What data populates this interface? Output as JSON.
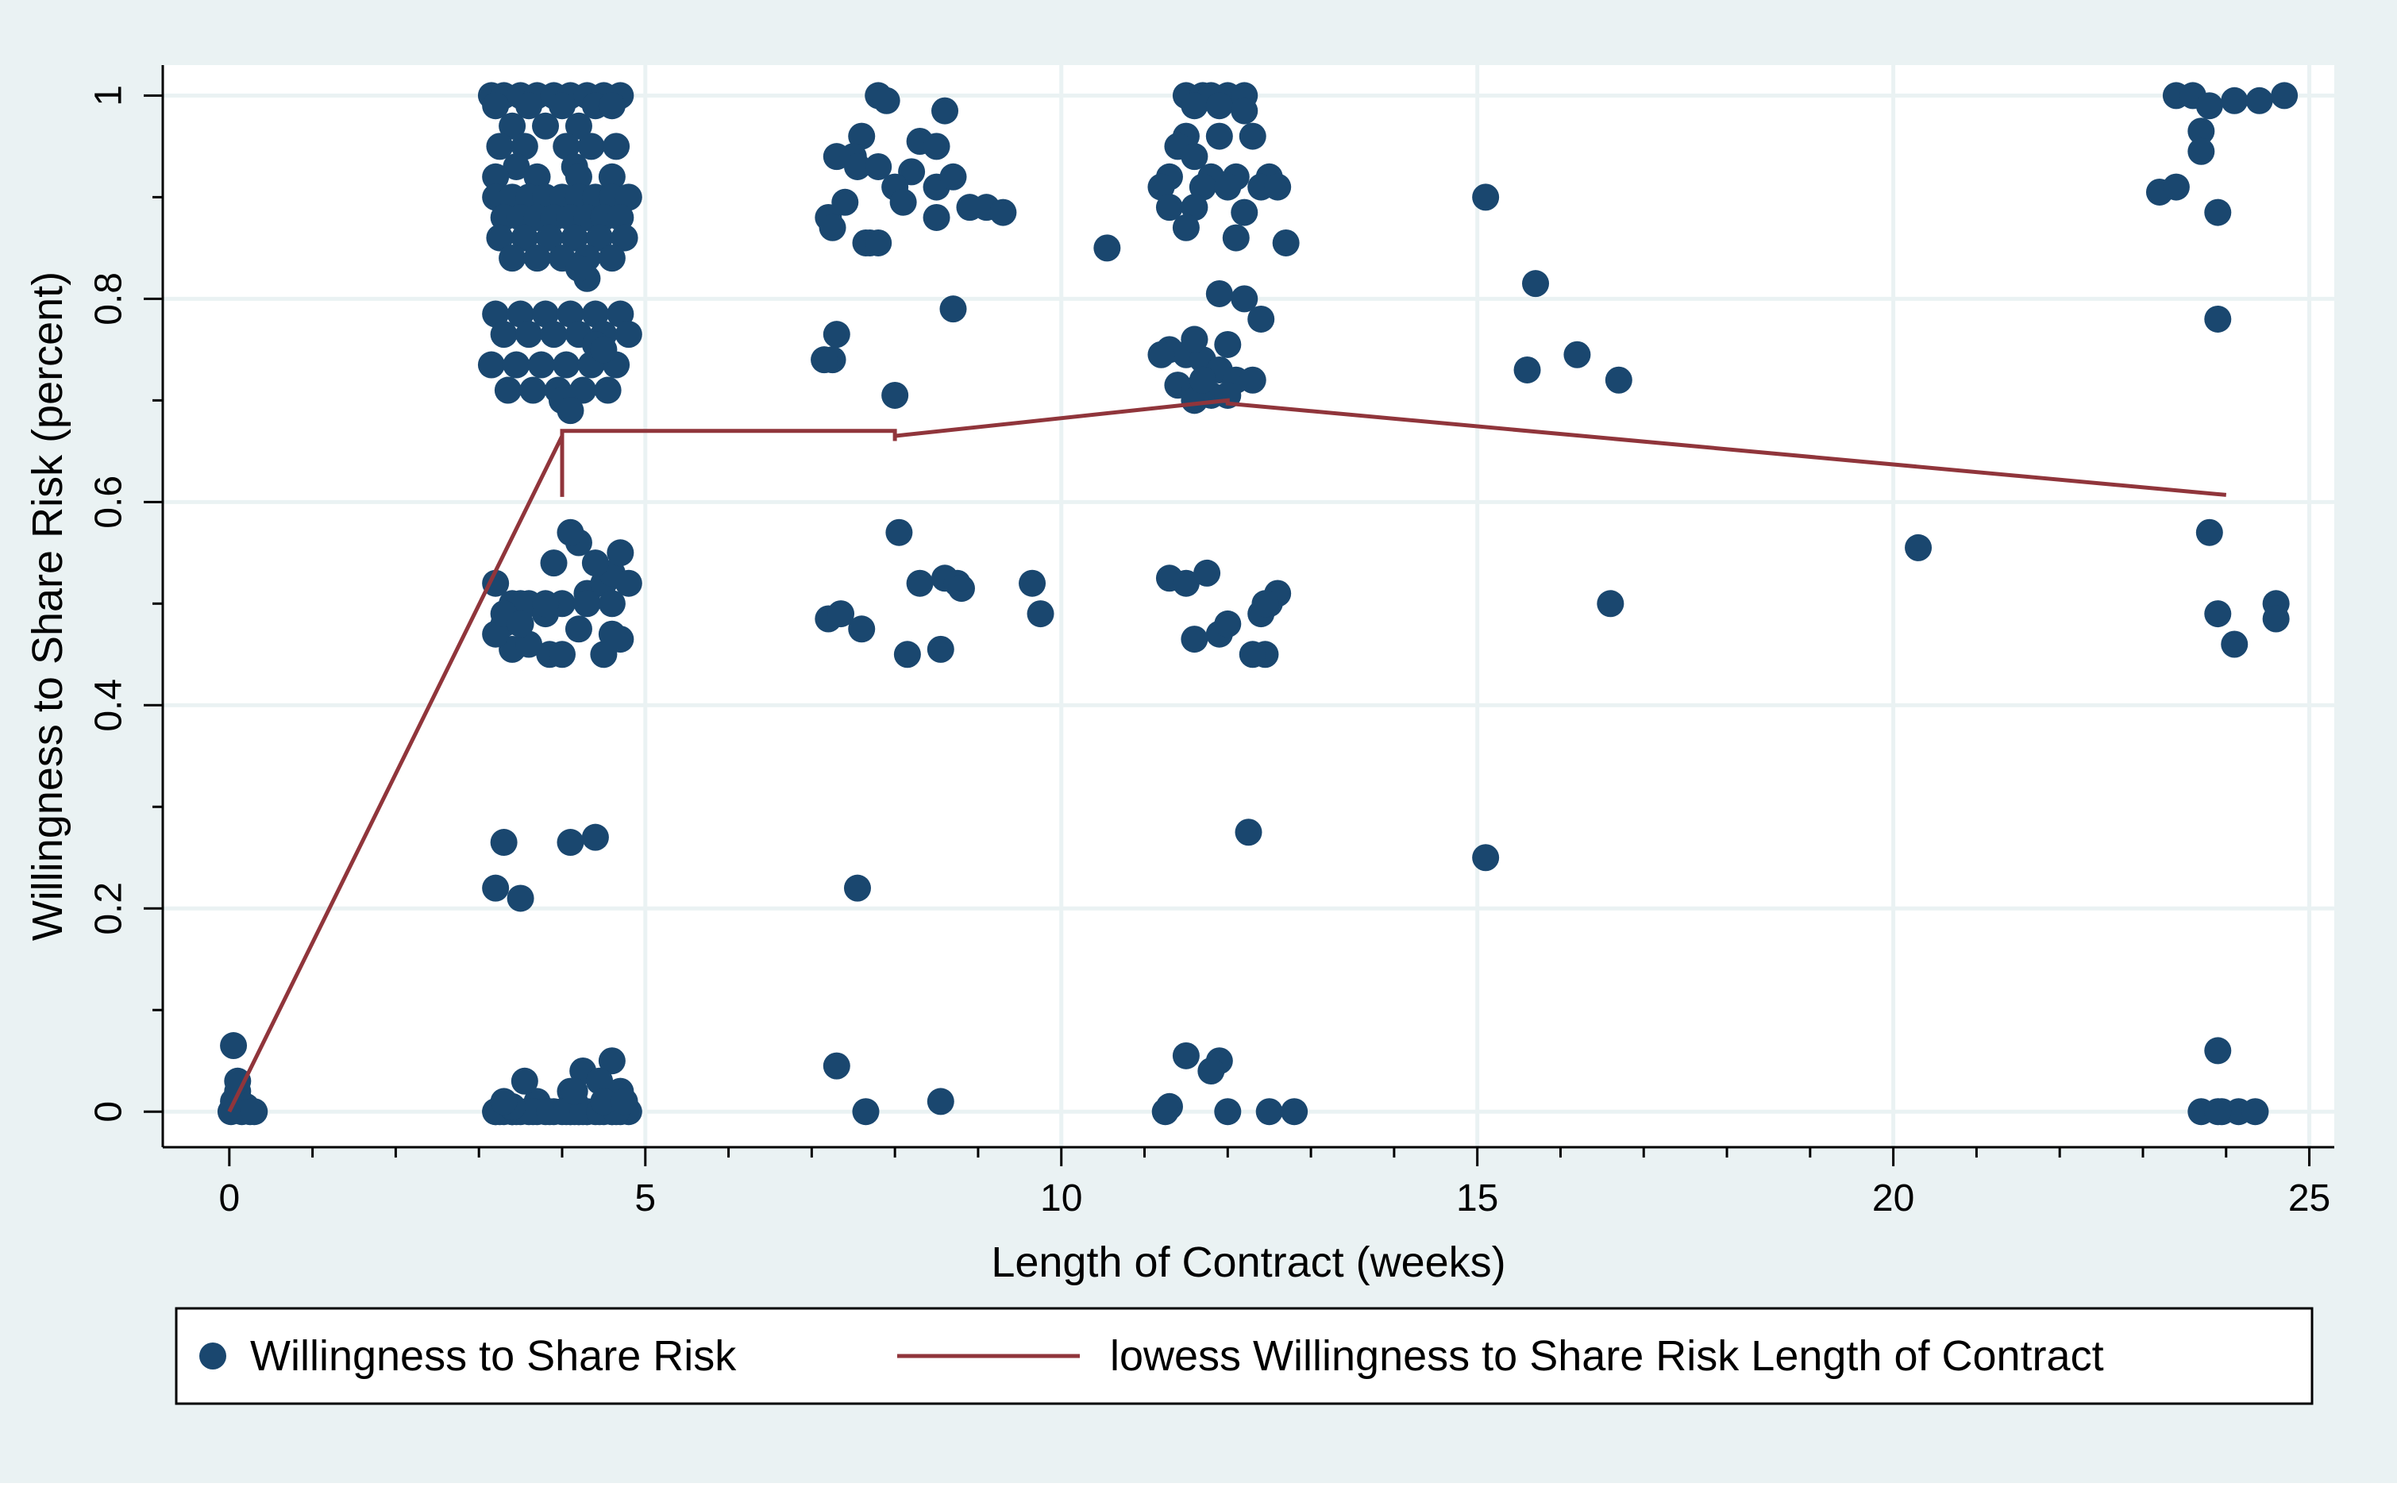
{
  "colors": {
    "outer_background": "#eaf2f3",
    "plot_background": "#ffffff",
    "grid": "#eaf2f3",
    "axis": "#000000",
    "points": "#1a476f",
    "line": "#90353b"
  },
  "chart_data": {
    "type": "scatter",
    "title": "",
    "xlabel": "Length of Contract (weeks)",
    "ylabel": "Willingness to Share Risk (percent)",
    "xlim": [
      -0.8,
      25.3
    ],
    "ylim": [
      -0.035,
      1.03
    ],
    "x_ticks": [
      0,
      5,
      10,
      15,
      20,
      25
    ],
    "x_tick_labels": [
      "0",
      "5",
      "10",
      "15",
      "20",
      "25"
    ],
    "x_minor_ticks": [
      1,
      2,
      3,
      4,
      6,
      7,
      8,
      9,
      11,
      12,
      13,
      14,
      16,
      17,
      18,
      19,
      21,
      22,
      23,
      24
    ],
    "y_ticks": [
      0,
      0.2,
      0.4,
      0.6,
      0.8,
      1
    ],
    "y_tick_labels": [
      "0",
      "0.2",
      "0.4",
      "0.6",
      "0.8",
      "1"
    ],
    "y_minor_ticks": [
      0.1,
      0.3,
      0.5,
      0.7,
      0.9
    ],
    "grid": true,
    "legend_position": "bottom",
    "legend": [
      {
        "label": "Willingness to Share Risk",
        "kind": "marker"
      },
      {
        "label": "lowess Willingness to Share Risk Length of Contract",
        "kind": "line"
      }
    ],
    "series": [
      {
        "name": "Willingness to Share Risk",
        "kind": "scatter",
        "x": [
          0.02,
          0.05,
          0.1,
          0.15,
          0.2,
          0.25,
          0.1,
          0.3,
          0.05,
          3.15,
          3.3,
          3.5,
          3.7,
          3.9,
          4.1,
          4.3,
          4.5,
          4.7,
          3.2,
          3.6,
          4.0,
          4.4,
          4.6,
          3.4,
          3.8,
          4.2,
          3.25,
          3.55,
          4.05,
          4.35,
          4.65,
          3.45,
          4.15,
          3.2,
          3.7,
          4.2,
          4.6,
          3.2,
          3.4,
          3.6,
          3.8,
          4.0,
          4.2,
          4.4,
          4.6,
          4.8,
          3.3,
          3.5,
          3.7,
          3.9,
          4.1,
          4.3,
          4.5,
          4.7,
          3.25,
          3.55,
          3.85,
          4.15,
          4.45,
          4.75,
          3.4,
          3.7,
          4.0,
          4.3,
          4.6,
          3.2,
          3.5,
          3.8,
          4.1,
          4.4,
          4.7,
          3.3,
          3.6,
          3.9,
          4.2,
          4.5,
          4.8,
          3.15,
          3.45,
          3.75,
          4.05,
          4.35,
          4.65,
          3.35,
          3.65,
          3.95,
          4.25,
          4.55,
          4.0,
          4.1,
          4.4,
          4.5,
          4.3,
          4.2,
          3.4,
          3.6,
          3.5,
          3.2,
          3.3,
          3.8,
          4.0,
          4.3,
          4.5,
          4.6,
          4.7,
          4.8,
          4.2,
          4.4,
          3.9,
          4.6,
          4.1,
          3.85,
          3.4,
          3.2,
          4.2,
          4.5,
          3.3,
          3.6,
          4.0,
          4.3,
          3.5,
          4.6,
          4.7,
          3.8,
          3.3,
          4.4,
          4.1,
          3.2,
          3.5,
          3.4,
          3.4,
          4.15,
          4.5,
          4.1,
          4.3,
          4.25,
          4.6,
          4.15,
          4.45,
          3.3,
          4.7,
          3.2,
          3.7,
          4.2,
          4.1,
          4.6,
          3.2,
          3.3,
          3.4,
          3.5,
          3.6,
          3.7,
          3.8,
          3.9,
          4.0,
          4.1,
          4.2,
          4.3,
          4.4,
          4.5,
          4.6,
          4.7,
          4.8,
          3.25,
          3.45,
          3.65,
          3.85,
          4.05,
          4.25,
          4.45,
          4.65,
          4.5,
          4.15,
          3.55,
          3.4,
          3.3,
          4.75,
          7.8,
          7.9,
          7.6,
          8.6,
          7.3,
          7.5,
          8.3,
          8.5,
          7.55,
          7.8,
          8.2,
          8.5,
          8.7,
          8.0,
          8.9,
          9.1,
          9.3,
          7.2,
          7.4,
          8.1,
          7.25,
          7.7,
          8.5,
          7.65,
          7.8,
          8.7,
          7.3,
          7.25,
          7.15,
          8.0,
          8.3,
          8.05,
          8.6,
          8.75,
          8.8,
          7.2,
          7.6,
          7.35,
          8.15,
          9.65,
          9.75,
          8.55,
          7.55,
          7.3,
          7.65,
          8.55,
          10.55,
          11.5,
          11.7,
          11.8,
          12.0,
          12.2,
          11.6,
          11.9,
          12.2,
          11.5,
          11.9,
          12.3,
          11.4,
          11.6,
          11.3,
          11.8,
          12.1,
          12.5,
          11.2,
          11.7,
          12.0,
          12.4,
          12.6,
          11.3,
          11.6,
          12.2,
          11.5,
          12.1,
          12.7,
          11.9,
          12.2,
          12.4,
          11.6,
          12.0,
          11.3,
          11.5,
          11.7,
          11.9,
          12.1,
          12.3,
          11.4,
          11.6,
          11.8,
          12.0,
          11.6,
          11.7,
          11.6,
          11.2,
          11.3,
          11.5,
          11.9,
          12.0,
          12.4,
          12.5,
          12.6,
          12.45,
          12.45,
          12.3,
          11.6,
          11.75,
          12.25,
          11.9,
          11.5,
          11.8,
          11.3,
          11.25,
          12.0,
          12.5,
          12.8,
          15.1,
          15.7,
          15.6,
          16.2,
          16.7,
          16.6,
          15.1,
          20.3,
          23.4,
          23.6,
          23.8,
          24.1,
          24.4,
          24.7,
          23.7,
          23.7,
          23.2,
          23.4,
          23.9,
          23.9,
          23.8,
          23.9,
          24.6,
          24.6,
          24.1,
          23.9,
          23.7,
          23.95,
          24.15,
          24.35,
          23.9
        ],
        "y": [
          0.0,
          0.01,
          0.02,
          0.0,
          0.005,
          0.0,
          0.03,
          0.0,
          0.065,
          1.0,
          1.0,
          1.0,
          1.0,
          1.0,
          1.0,
          1.0,
          1.0,
          1.0,
          0.99,
          0.99,
          0.99,
          0.99,
          0.99,
          0.97,
          0.97,
          0.97,
          0.95,
          0.95,
          0.95,
          0.95,
          0.95,
          0.93,
          0.93,
          0.92,
          0.92,
          0.92,
          0.92,
          0.9,
          0.9,
          0.9,
          0.9,
          0.9,
          0.9,
          0.9,
          0.9,
          0.9,
          0.88,
          0.88,
          0.88,
          0.88,
          0.88,
          0.88,
          0.88,
          0.88,
          0.86,
          0.86,
          0.86,
          0.86,
          0.86,
          0.86,
          0.84,
          0.84,
          0.84,
          0.84,
          0.84,
          0.785,
          0.785,
          0.785,
          0.785,
          0.785,
          0.785,
          0.765,
          0.765,
          0.765,
          0.765,
          0.765,
          0.765,
          0.735,
          0.735,
          0.735,
          0.735,
          0.735,
          0.735,
          0.71,
          0.71,
          0.71,
          0.71,
          0.71,
          0.7,
          0.69,
          0.755,
          0.75,
          0.82,
          0.83,
          0.5,
          0.5,
          0.5,
          0.52,
          0.48,
          0.49,
          0.5,
          0.51,
          0.52,
          0.53,
          0.55,
          0.52,
          0.56,
          0.54,
          0.54,
          0.47,
          0.57,
          0.45,
          0.455,
          0.47,
          0.475,
          0.45,
          0.49,
          0.46,
          0.45,
          0.5,
          0.48,
          0.5,
          0.465,
          0.5,
          0.265,
          0.27,
          0.265,
          0.22,
          0.21,
          0.0,
          0.0,
          0.01,
          0.005,
          0.02,
          0.0,
          0.04,
          0.05,
          0.0,
          0.03,
          0.005,
          0.02,
          0.0,
          0.01,
          0.0,
          0.0,
          0.0,
          0.0,
          0.0,
          0.0,
          0.0,
          0.0,
          0.0,
          0.0,
          0.0,
          0.0,
          0.0,
          0.0,
          0.0,
          0.0,
          0.0,
          0.0,
          0.0,
          0.0,
          0.0,
          0.0,
          0.0,
          0.0,
          0.0,
          0.0,
          0.0,
          0.0,
          0.01,
          0.02,
          0.03,
          0.005,
          0.01,
          0.01,
          1.0,
          0.995,
          0.96,
          0.985,
          0.94,
          0.94,
          0.955,
          0.95,
          0.93,
          0.93,
          0.925,
          0.91,
          0.92,
          0.91,
          0.89,
          0.89,
          0.885,
          0.88,
          0.895,
          0.895,
          0.87,
          0.855,
          0.88,
          0.855,
          0.855,
          0.79,
          0.765,
          0.74,
          0.74,
          0.705,
          0.52,
          0.57,
          0.525,
          0.52,
          0.515,
          0.485,
          0.475,
          0.49,
          0.45,
          0.52,
          0.49,
          0.455,
          0.22,
          0.045,
          0.0,
          0.01,
          0.85,
          1.0,
          1.0,
          1.0,
          1.0,
          1.0,
          0.99,
          0.99,
          0.985,
          0.96,
          0.96,
          0.96,
          0.95,
          0.94,
          0.92,
          0.92,
          0.92,
          0.92,
          0.91,
          0.91,
          0.91,
          0.91,
          0.91,
          0.89,
          0.89,
          0.885,
          0.87,
          0.86,
          0.855,
          0.805,
          0.8,
          0.78,
          0.76,
          0.755,
          0.75,
          0.745,
          0.74,
          0.73,
          0.72,
          0.72,
          0.715,
          0.71,
          0.705,
          0.705,
          0.7,
          0.72,
          0.76,
          0.745,
          0.525,
          0.52,
          0.47,
          0.48,
          0.49,
          0.5,
          0.51,
          0.5,
          0.45,
          0.45,
          0.465,
          0.53,
          0.275,
          0.05,
          0.055,
          0.04,
          0.005,
          0.0,
          0.0,
          0.0,
          0.0,
          0.9,
          0.815,
          0.73,
          0.745,
          0.72,
          0.5,
          0.25,
          0.555,
          1.0,
          1.0,
          0.99,
          0.995,
          0.995,
          1.0,
          0.965,
          0.945,
          0.905,
          0.91,
          0.885,
          0.78,
          0.57,
          0.49,
          0.5,
          0.485,
          0.46,
          0.06,
          0.0,
          0.0,
          0.0,
          0.0,
          0.0
        ]
      },
      {
        "name": "lowess Willingness to Share Risk Length of Contract",
        "kind": "line",
        "x": [
          0,
          4.0,
          4.0,
          4.0,
          8.0,
          8.0,
          8.0,
          12.0,
          12.0,
          24.0
        ],
        "y": [
          0.0,
          0.665,
          0.605,
          0.67,
          0.67,
          0.66,
          0.665,
          0.7,
          0.697,
          0.607
        ]
      }
    ]
  }
}
